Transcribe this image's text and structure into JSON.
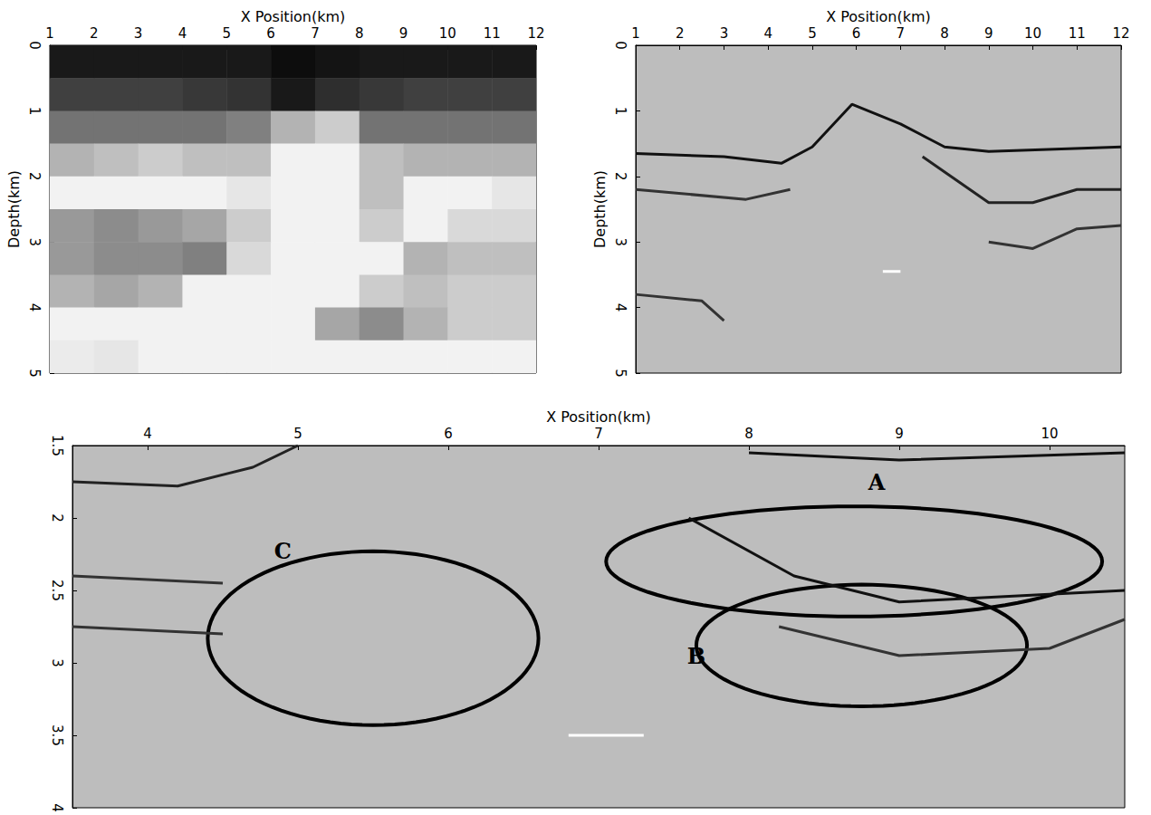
{
  "chart_data": [
    {
      "type": "heatmap",
      "xlabel": "X Position(km)",
      "ylabel": "Depth(km)",
      "xlim": [
        1,
        12
      ],
      "ylim": [
        0,
        5
      ],
      "xticks": [
        1,
        2,
        3,
        4,
        5,
        6,
        7,
        8,
        9,
        10,
        11,
        12
      ],
      "yticks": [
        0,
        1,
        2,
        3,
        4,
        5
      ],
      "x_edges": [
        1,
        2,
        3,
        4,
        5,
        6,
        7,
        8,
        9,
        10,
        11,
        12
      ],
      "depth_edges": [
        0,
        0.5,
        1,
        1.5,
        2,
        2.5,
        3,
        3.5,
        4,
        4.5,
        5
      ],
      "cells": [
        [
          0.9,
          0.9,
          0.9,
          0.9,
          0.9,
          0.95,
          0.92,
          0.9,
          0.9,
          0.9,
          0.9
        ],
        [
          0.75,
          0.75,
          0.75,
          0.78,
          0.8,
          0.9,
          0.82,
          0.78,
          0.75,
          0.75,
          0.75
        ],
        [
          0.55,
          0.55,
          0.55,
          0.55,
          0.5,
          0.3,
          0.2,
          0.55,
          0.55,
          0.55,
          0.55
        ],
        [
          0.3,
          0.25,
          0.2,
          0.25,
          0.25,
          0.05,
          0.05,
          0.25,
          0.3,
          0.3,
          0.3
        ],
        [
          0.05,
          0.05,
          0.05,
          0.05,
          0.1,
          0.05,
          0.05,
          0.25,
          0.05,
          0.05,
          0.1
        ],
        [
          0.4,
          0.45,
          0.4,
          0.35,
          0.2,
          0.05,
          0.05,
          0.2,
          0.05,
          0.15,
          0.15
        ],
        [
          0.4,
          0.45,
          0.45,
          0.5,
          0.15,
          0.05,
          0.05,
          0.05,
          0.3,
          0.25,
          0.25
        ],
        [
          0.3,
          0.35,
          0.3,
          0.05,
          0.05,
          0.05,
          0.05,
          0.2,
          0.25,
          0.2,
          0.2
        ],
        [
          0.05,
          0.05,
          0.05,
          0.05,
          0.05,
          0.05,
          0.35,
          0.45,
          0.3,
          0.2,
          0.2
        ],
        [
          0.08,
          0.1,
          0.05,
          0.05,
          0.05,
          0.05,
          0.05,
          0.05,
          0.05,
          0.05,
          0.05
        ]
      ]
    },
    {
      "type": "line",
      "xlabel": "X Position(km)",
      "ylabel": "Depth(km)",
      "xlim": [
        1,
        12
      ],
      "ylim": [
        0,
        5
      ],
      "xticks": [
        1,
        2,
        3,
        4,
        5,
        6,
        7,
        8,
        9,
        10,
        11,
        12
      ],
      "yticks": [
        0,
        1,
        2,
        3,
        4,
        5
      ],
      "series": [
        {
          "color": "#111111",
          "points": [
            [
              1,
              1.65
            ],
            [
              3,
              1.7
            ],
            [
              4.3,
              1.8
            ],
            [
              5,
              1.55
            ],
            [
              5.9,
              0.9
            ],
            [
              7,
              1.2
            ],
            [
              8,
              1.55
            ],
            [
              9,
              1.62
            ],
            [
              12,
              1.55
            ]
          ]
        },
        {
          "color": "#333333",
          "points": [
            [
              1,
              2.2
            ],
            [
              3.5,
              2.35
            ],
            [
              4.5,
              2.2
            ]
          ]
        },
        {
          "color": "#222222",
          "points": [
            [
              7.5,
              1.7
            ],
            [
              9,
              2.4
            ],
            [
              10,
              2.4
            ],
            [
              11,
              2.2
            ],
            [
              12,
              2.2
            ]
          ]
        },
        {
          "color": "#333333",
          "points": [
            [
              1,
              3.8
            ],
            [
              2.5,
              3.9
            ],
            [
              3,
              4.2
            ]
          ]
        },
        {
          "color": "#333333",
          "points": [
            [
              9,
              3.0
            ],
            [
              10,
              3.1
            ],
            [
              11,
              2.8
            ],
            [
              12,
              2.75
            ]
          ]
        },
        {
          "color": "#ffffff",
          "points": [
            [
              6.6,
              3.45
            ],
            [
              7.0,
              3.45
            ]
          ]
        }
      ]
    },
    {
      "type": "line",
      "xlabel": "X Position(km)",
      "xlim": [
        3.5,
        10.5
      ],
      "ylim": [
        1.5,
        4
      ],
      "xticks": [
        4,
        5,
        6,
        7,
        8,
        9,
        10
      ],
      "yticks": [
        1.5,
        2,
        2.5,
        3,
        3.5,
        4
      ],
      "series": [
        {
          "color": "#222222",
          "points": [
            [
              3.5,
              1.75
            ],
            [
              4.2,
              1.78
            ],
            [
              4.7,
              1.65
            ],
            [
              5.0,
              1.5
            ]
          ]
        },
        {
          "color": "#333333",
          "points": [
            [
              3.5,
              2.4
            ],
            [
              4.5,
              2.45
            ]
          ]
        },
        {
          "color": "#333333",
          "points": [
            [
              3.5,
              2.75
            ],
            [
              4.5,
              2.8
            ]
          ]
        },
        {
          "color": "#111111",
          "points": [
            [
              8.0,
              1.55
            ],
            [
              9.0,
              1.6
            ],
            [
              10.5,
              1.55
            ]
          ]
        },
        {
          "color": "#111111",
          "points": [
            [
              7.6,
              2.0
            ],
            [
              8.3,
              2.4
            ],
            [
              9.0,
              2.58
            ],
            [
              10.5,
              2.5
            ]
          ]
        },
        {
          "color": "#333333",
          "points": [
            [
              8.2,
              2.75
            ],
            [
              9,
              2.95
            ],
            [
              10,
              2.9
            ],
            [
              10.5,
              2.7
            ]
          ]
        },
        {
          "color": "#ffffff",
          "points": [
            [
              6.8,
              3.5
            ],
            [
              7.3,
              3.5
            ]
          ]
        }
      ],
      "annotations": [
        {
          "label": "A",
          "label_at": [
            8.85,
            1.75
          ],
          "center": [
            8.7,
            2.3
          ],
          "radii": [
            1.65,
            0.38
          ]
        },
        {
          "label": "B",
          "label_at": [
            7.65,
            2.95
          ],
          "center": [
            8.75,
            2.88
          ],
          "radii": [
            1.1,
            0.42
          ]
        },
        {
          "label": "C",
          "label_at": [
            4.9,
            2.23
          ],
          "center": [
            5.5,
            2.83
          ],
          "radii": [
            1.1,
            0.6
          ]
        }
      ]
    }
  ]
}
